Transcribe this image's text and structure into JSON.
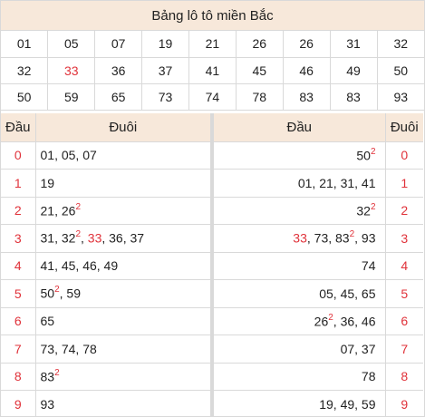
{
  "title": "Bảng lô tô miền Bắc",
  "numbers": [
    [
      "01",
      "05",
      "07",
      "19",
      "21",
      "26",
      "26",
      "31",
      "32"
    ],
    [
      "32",
      "33",
      "36",
      "37",
      "41",
      "45",
      "46",
      "49",
      "50"
    ],
    [
      "50",
      "59",
      "65",
      "73",
      "74",
      "78",
      "83",
      "83",
      "93"
    ]
  ],
  "highlight": "33",
  "left_headers": {
    "dau": "Đầu",
    "duoi": "Đuôi"
  },
  "right_headers": {
    "dau": "Đầu",
    "duoi": "Đuôi"
  },
  "left_rows": [
    {
      "dau": "0",
      "duoi": [
        {
          "t": "01, 05, 07"
        }
      ]
    },
    {
      "dau": "1",
      "duoi": [
        {
          "t": "19"
        }
      ]
    },
    {
      "dau": "2",
      "duoi": [
        {
          "t": "21, 26"
        },
        {
          "t": "2",
          "sup": true
        }
      ]
    },
    {
      "dau": "3",
      "duoi": [
        {
          "t": "31, 32"
        },
        {
          "t": "2",
          "sup": true
        },
        {
          "t": ", "
        },
        {
          "t": "33",
          "red": true
        },
        {
          "t": ", 36, 37"
        }
      ]
    },
    {
      "dau": "4",
      "duoi": [
        {
          "t": "41, 45, 46, 49"
        }
      ]
    },
    {
      "dau": "5",
      "duoi": [
        {
          "t": "50"
        },
        {
          "t": "2",
          "sup": true
        },
        {
          "t": ", 59"
        }
      ]
    },
    {
      "dau": "6",
      "duoi": [
        {
          "t": "65"
        }
      ]
    },
    {
      "dau": "7",
      "duoi": [
        {
          "t": "73, 74, 78"
        }
      ]
    },
    {
      "dau": "8",
      "duoi": [
        {
          "t": "83"
        },
        {
          "t": "2",
          "sup": true
        }
      ]
    },
    {
      "dau": "9",
      "duoi": [
        {
          "t": "93"
        }
      ]
    }
  ],
  "right_rows": [
    {
      "duoi": "0",
      "dau": [
        {
          "t": "50"
        },
        {
          "t": "2",
          "sup": true
        }
      ]
    },
    {
      "duoi": "1",
      "dau": [
        {
          "t": "01, 21, 31, 41"
        }
      ]
    },
    {
      "duoi": "2",
      "dau": [
        {
          "t": "32"
        },
        {
          "t": "2",
          "sup": true
        }
      ]
    },
    {
      "duoi": "3",
      "dau": [
        {
          "t": "33",
          "red": true
        },
        {
          "t": ", 73, 83"
        },
        {
          "t": "2",
          "sup": true
        },
        {
          "t": ", 93"
        }
      ]
    },
    {
      "duoi": "4",
      "dau": [
        {
          "t": "74"
        }
      ]
    },
    {
      "duoi": "5",
      "dau": [
        {
          "t": "05, 45, 65"
        }
      ]
    },
    {
      "duoi": "6",
      "dau": [
        {
          "t": "26"
        },
        {
          "t": "2",
          "sup": true
        },
        {
          "t": ", 36, 46"
        }
      ]
    },
    {
      "duoi": "7",
      "dau": [
        {
          "t": "07, 37"
        }
      ]
    },
    {
      "duoi": "8",
      "dau": [
        {
          "t": "78"
        }
      ]
    },
    {
      "duoi": "9",
      "dau": [
        {
          "t": "19, 49, 59"
        }
      ]
    }
  ],
  "colors": {
    "header_bg": "#f7e8da",
    "accent_red": "#e0323a",
    "border": "#d9d9d9"
  }
}
